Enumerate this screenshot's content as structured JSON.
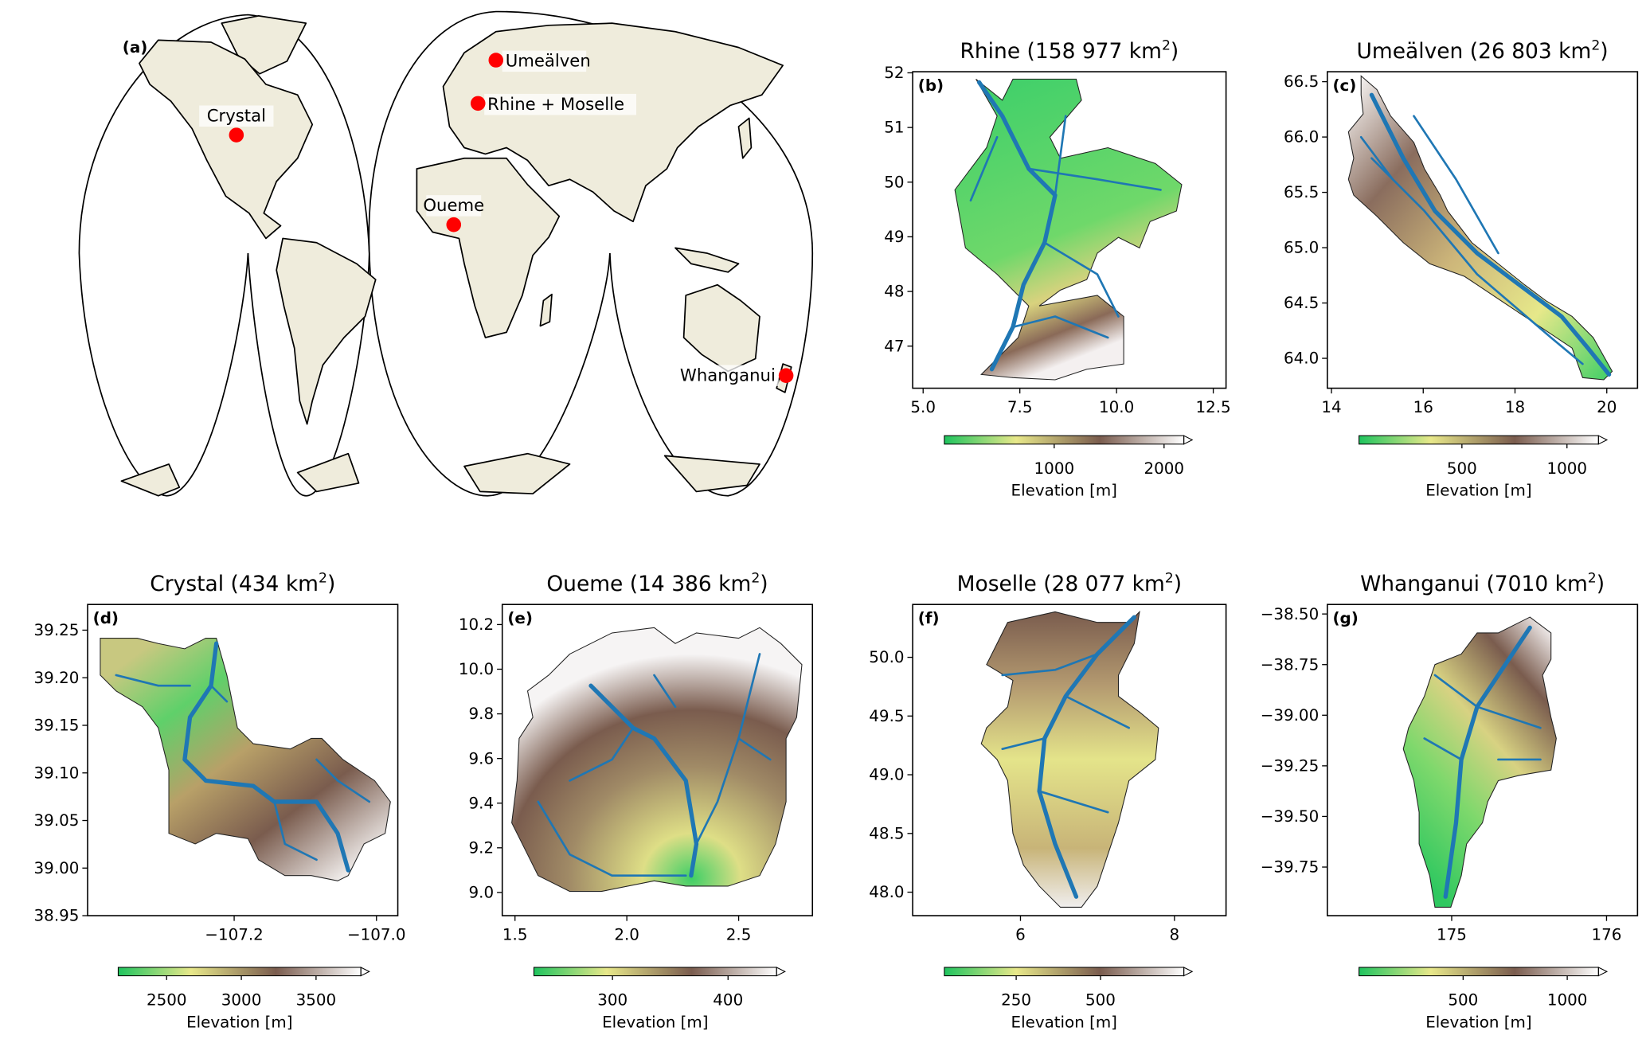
{
  "world_map": {
    "panel_label": "(a)",
    "land_color": "#efecdc",
    "marker_color": "#ff0000",
    "locations": [
      {
        "name": "Umeälven"
      },
      {
        "name": "Rhine + Moselle"
      },
      {
        "name": "Crystal"
      },
      {
        "name": "Oueme"
      },
      {
        "name": "Whanganui"
      }
    ]
  },
  "colors": {
    "river": "#1f77b4",
    "colormap": [
      "#1fc45e",
      "#e8e88a",
      "#7a5c4e",
      "#ffffff"
    ]
  },
  "chart_data": [
    {
      "type": "heatmap",
      "panel": "(b)",
      "title": "Rhine (158 977 km",
      "title_sup": "2",
      "title_end": ")",
      "xlim": [
        4.73,
        12.83
      ],
      "ylim": [
        46.23,
        52.02
      ],
      "xticks": [
        5.0,
        7.5,
        10.0,
        12.5
      ],
      "xtick_labels": [
        "5.0",
        "7.5",
        "10.0",
        "12.5"
      ],
      "yticks": [
        47,
        48,
        49,
        50,
        51,
        52
      ],
      "ytick_labels": [
        "47",
        "48",
        "49",
        "50",
        "51",
        "52"
      ],
      "colorbar": {
        "label": "Elevation [m]",
        "range": [
          0,
          2180
        ],
        "ticks": [
          1000,
          2000
        ],
        "tick_labels": [
          "1000",
          "2000"
        ],
        "extend": "max"
      }
    },
    {
      "type": "heatmap",
      "panel": "(c)",
      "title": "Umeälven (26 803 km",
      "title_sup": "2",
      "title_end": ")",
      "xlim": [
        13.91,
        20.67
      ],
      "ylim": [
        63.73,
        66.59
      ],
      "xticks": [
        14,
        16,
        18,
        20
      ],
      "xtick_labels": [
        "14",
        "16",
        "18",
        "20"
      ],
      "yticks": [
        64.0,
        64.5,
        65.0,
        65.5,
        66.0,
        66.5
      ],
      "ytick_labels": [
        "64.0",
        "64.5",
        "65.0",
        "65.5",
        "66.0",
        "66.5"
      ],
      "colorbar": {
        "label": "Elevation [m]",
        "range": [
          10,
          1150
        ],
        "ticks": [
          500,
          1000
        ],
        "tick_labels": [
          "500",
          "1000"
        ],
        "extend": "max"
      }
    },
    {
      "type": "heatmap",
      "panel": "(d)",
      "title": "Crystal (434 km",
      "title_sup": "2",
      "title_end": ")",
      "xlim": [
        -107.406,
        -106.97
      ],
      "ylim": [
        38.95,
        39.277
      ],
      "xticks": [
        -107.2,
        -107.0
      ],
      "xtick_labels": [
        "−107.2",
        "−107.0"
      ],
      "yticks": [
        38.95,
        39.0,
        39.05,
        39.1,
        39.15,
        39.2,
        39.25
      ],
      "ytick_labels": [
        "38.95",
        "39.00",
        "39.05",
        "39.10",
        "39.15",
        "39.20",
        "39.25"
      ],
      "colorbar": {
        "label": "Elevation [m]",
        "range": [
          2176,
          3800
        ],
        "ticks": [
          2500,
          3000,
          3500
        ],
        "tick_labels": [
          "2500",
          "3000",
          "3500"
        ],
        "extend": "max"
      }
    },
    {
      "type": "heatmap",
      "panel": "(e)",
      "title": "Oueme (14 386 km",
      "title_sup": "2",
      "title_end": ")",
      "xlim": [
        1.443,
        2.83
      ],
      "ylim": [
        8.896,
        10.29
      ],
      "xticks": [
        1.5,
        2.0,
        2.5
      ],
      "xtick_labels": [
        "1.5",
        "2.0",
        "2.5"
      ],
      "yticks": [
        9.0,
        9.2,
        9.4,
        9.6,
        9.8,
        10.0,
        10.2
      ],
      "ytick_labels": [
        "9.0",
        "9.2",
        "9.4",
        "9.6",
        "9.8",
        "10.0",
        "10.2"
      ],
      "colorbar": {
        "label": "Elevation [m]",
        "range": [
          232,
          442
        ],
        "ticks": [
          300,
          400
        ],
        "tick_labels": [
          "300",
          "400"
        ],
        "extend": "max"
      }
    },
    {
      "type": "heatmap",
      "panel": "(f)",
      "title": "Moselle (28 077 km",
      "title_sup": "2",
      "title_end": ")",
      "xlim": [
        4.6,
        8.67
      ],
      "ylim": [
        47.8,
        50.45
      ],
      "xticks": [
        6,
        8
      ],
      "xtick_labels": [
        "6",
        "8"
      ],
      "yticks": [
        48.0,
        48.5,
        49.0,
        49.5,
        50.0
      ],
      "ytick_labels": [
        "48.0",
        "48.5",
        "49.0",
        "49.5",
        "50.0"
      ],
      "colorbar": {
        "label": "Elevation [m]",
        "range": [
          37,
          747
        ],
        "ticks": [
          250,
          500
        ],
        "tick_labels": [
          "250",
          "500"
        ],
        "extend": "max"
      }
    },
    {
      "type": "heatmap",
      "panel": "(g)",
      "title": "Whanganui (7010 km",
      "title_sup": "2",
      "title_end": ")",
      "xlim": [
        174.197,
        176.2
      ],
      "ylim": [
        -39.99,
        -38.453
      ],
      "xticks": [
        175,
        176
      ],
      "xtick_labels": [
        "175",
        "176"
      ],
      "yticks": [
        -39.75,
        -39.5,
        -39.25,
        -39.0,
        -38.75,
        -38.5
      ],
      "ytick_labels": [
        "−39.75",
        "−39.50",
        "−39.25",
        "−39.00",
        "−38.75",
        "−38.50"
      ],
      "colorbar": {
        "label": "Elevation [m]",
        "range": [
          0,
          1150
        ],
        "ticks": [
          500,
          1000
        ],
        "tick_labels": [
          "500",
          "1000"
        ],
        "extend": "max"
      }
    }
  ]
}
